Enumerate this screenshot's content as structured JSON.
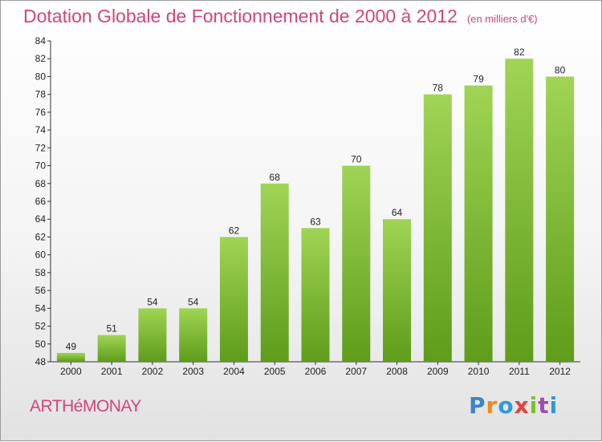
{
  "header": {
    "title": "Dotation Globale de Fonctionnement de 2000 à 2012",
    "subtitle": "(en milliers d'€)"
  },
  "footer": {
    "commune": "ARTHéMONAY",
    "logo_letters": [
      "P",
      "r",
      "o",
      "x",
      "i",
      "t",
      "i"
    ],
    "logo_colors": [
      "#3a86c8",
      "#f08a1c",
      "#2b9bd6",
      "#e2423a",
      "#7bbf2a",
      "#9c4fb3",
      "#2b9bd6"
    ]
  },
  "colors": {
    "bar_top": "#a0d455",
    "bar_bottom": "#5e9c1a",
    "accent": "#d2457c"
  },
  "chart_data": {
    "type": "bar",
    "title": "Dotation Globale de Fonctionnement de 2000 à 2012",
    "subtitle": "(en milliers d'€)",
    "xlabel": "",
    "ylabel": "",
    "categories": [
      "2000",
      "2001",
      "2002",
      "2003",
      "2004",
      "2005",
      "2006",
      "2007",
      "2008",
      "2009",
      "2010",
      "2011",
      "2012"
    ],
    "values": [
      49,
      51,
      54,
      54,
      62,
      68,
      63,
      70,
      64,
      78,
      79,
      82,
      80
    ],
    "ylim": [
      48,
      84
    ],
    "ytick_step": 2,
    "grid": false,
    "legend": "none"
  }
}
